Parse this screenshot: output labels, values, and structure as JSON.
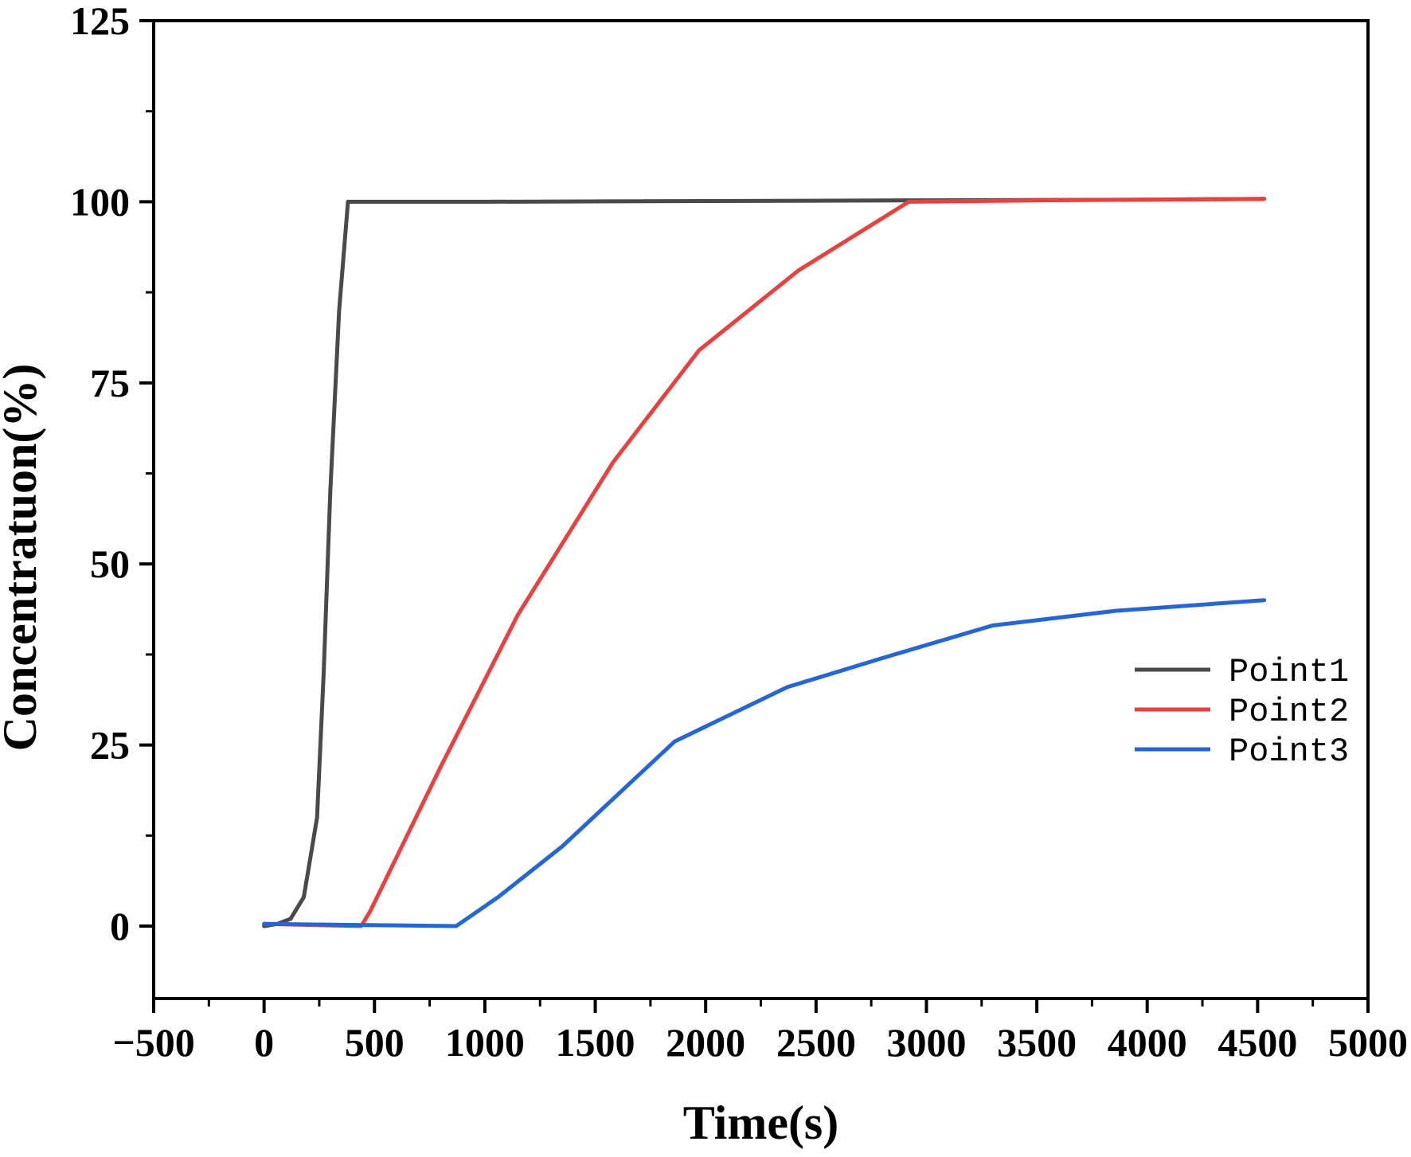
{
  "chart_data": {
    "type": "line",
    "title": "",
    "xlabel": "Time(s)",
    "ylabel": "Concentratuon(%)",
    "xlim": [
      -500,
      5000
    ],
    "ylim": [
      -10,
      125
    ],
    "x_ticks": [
      -500,
      0,
      500,
      1000,
      1500,
      2000,
      2500,
      3000,
      3500,
      4000,
      4500,
      5000
    ],
    "x_tick_labels": [
      "−500",
      "0",
      "500",
      "1000",
      "1500",
      "2000",
      "2500",
      "3000",
      "3500",
      "4000",
      "4500",
      "5000"
    ],
    "y_ticks": [
      0,
      25,
      50,
      75,
      100,
      125
    ],
    "y_tick_labels": [
      "0",
      "25",
      "50",
      "75",
      "100",
      "125"
    ],
    "grid": false,
    "legend_position": "center-right",
    "series": [
      {
        "name": "Point1",
        "color": "#4a4a4a",
        "points": [
          [
            0,
            0
          ],
          [
            60,
            0.3
          ],
          [
            120,
            1
          ],
          [
            150,
            2.5
          ],
          [
            180,
            4
          ],
          [
            240,
            15
          ],
          [
            270,
            35
          ],
          [
            300,
            60
          ],
          [
            340,
            85
          ],
          [
            380,
            100
          ],
          [
            1000,
            100
          ],
          [
            2000,
            100.1
          ],
          [
            3000,
            100.2
          ],
          [
            4000,
            100.3
          ],
          [
            4530,
            100.4
          ]
        ]
      },
      {
        "name": "Point2",
        "color": "#e8413f",
        "points": [
          [
            0,
            0.3
          ],
          [
            440,
            0
          ],
          [
            480,
            2
          ],
          [
            800,
            22
          ],
          [
            1150,
            43
          ],
          [
            1580,
            64
          ],
          [
            1970,
            79.5
          ],
          [
            2420,
            90.5
          ],
          [
            2920,
            100
          ],
          [
            3500,
            100.2
          ],
          [
            4000,
            100.3
          ],
          [
            4530,
            100.4
          ]
        ]
      },
      {
        "name": "Point3",
        "color": "#2566d6",
        "points": [
          [
            0,
            0.3
          ],
          [
            870,
            0
          ],
          [
            1060,
            4
          ],
          [
            1350,
            11
          ],
          [
            1860,
            25.5
          ],
          [
            2370,
            33
          ],
          [
            2800,
            37
          ],
          [
            3300,
            41.5
          ],
          [
            3850,
            43.5
          ],
          [
            4530,
            45
          ]
        ]
      }
    ]
  }
}
